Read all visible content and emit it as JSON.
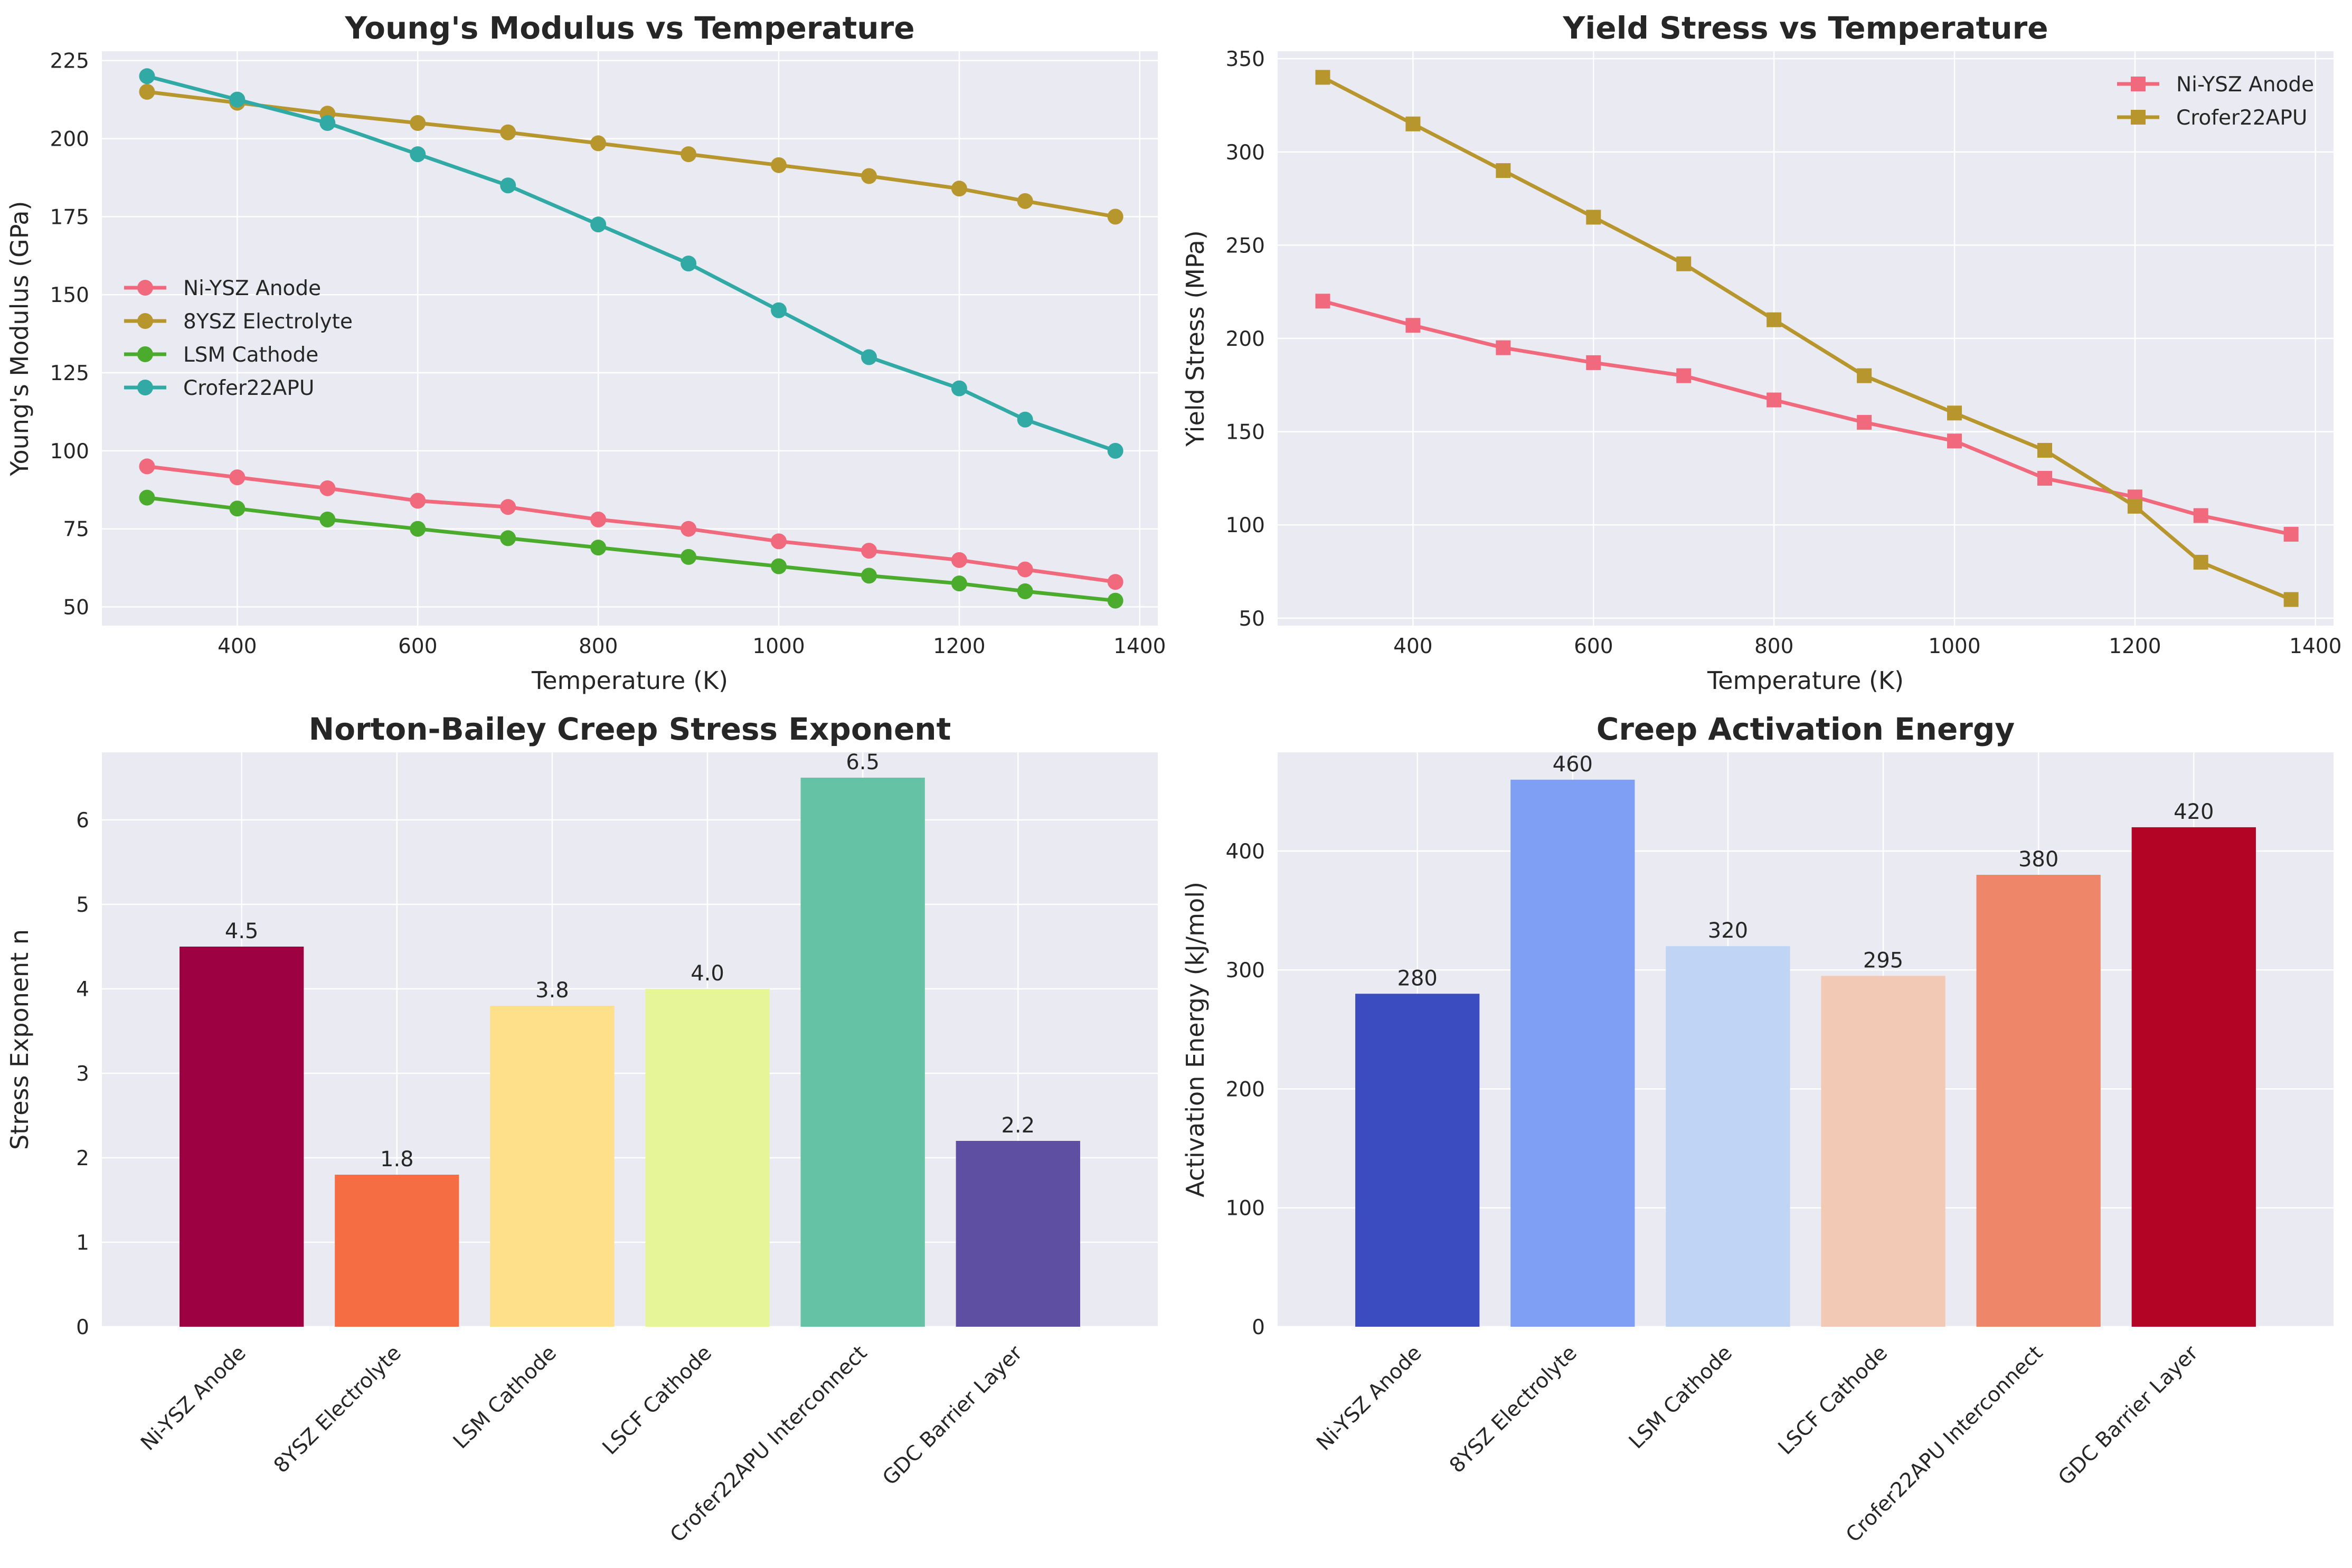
{
  "chart_data": [
    {
      "type": "line",
      "title": "Young's Modulus vs Temperature",
      "xlabel": "Temperature (K)",
      "ylabel": "Young's Modulus (GPa)",
      "xlim": [
        250,
        1420
      ],
      "ylim": [
        44,
        228
      ],
      "xticks": [
        400,
        600,
        800,
        1000,
        1200,
        1400
      ],
      "yticks": [
        50,
        75,
        100,
        125,
        150,
        175,
        200,
        225
      ],
      "grid": true,
      "legend": "center-left",
      "marker": "circle",
      "x": [
        300,
        400,
        500,
        600,
        700,
        800,
        900,
        1000,
        1100,
        1200,
        1273,
        1373
      ],
      "series": [
        {
          "name": "Ni-YSZ Anode",
          "color": "#f0697c",
          "values": [
            95,
            91.5,
            88,
            84,
            82,
            78,
            75,
            71,
            68,
            65,
            62,
            58
          ]
        },
        {
          "name": "8YSZ Electrolyte",
          "color": "#b8962e",
          "values": [
            215,
            211.5,
            208,
            205,
            202,
            198.5,
            195,
            191.5,
            188,
            184,
            180,
            175
          ]
        },
        {
          "name": "LSM Cathode",
          "color": "#4aab2c",
          "values": [
            85,
            81.5,
            78,
            75,
            72,
            69,
            66,
            63,
            60,
            57.5,
            55,
            52
          ]
        },
        {
          "name": "Crofer22APU",
          "color": "#31aaa6",
          "values": [
            220,
            212.5,
            205,
            195,
            185,
            172.5,
            160,
            145,
            130,
            120,
            110,
            100
          ]
        }
      ]
    },
    {
      "type": "line",
      "title": "Yield Stress vs Temperature",
      "xlabel": "Temperature (K)",
      "ylabel": "Yield Stress (MPa)",
      "xlim": [
        250,
        1420
      ],
      "ylim": [
        46,
        354
      ],
      "xticks": [
        400,
        600,
        800,
        1000,
        1200,
        1400
      ],
      "yticks": [
        50,
        100,
        150,
        200,
        250,
        300,
        350
      ],
      "grid": true,
      "legend": "top-right",
      "marker": "square",
      "x": [
        300,
        400,
        500,
        600,
        700,
        800,
        900,
        1000,
        1100,
        1200,
        1273,
        1373
      ],
      "series": [
        {
          "name": "Ni-YSZ Anode",
          "color": "#f0697c",
          "values": [
            220,
            207,
            195,
            187,
            180,
            167,
            155,
            145,
            125,
            115,
            105,
            95
          ]
        },
        {
          "name": "Crofer22APU",
          "color": "#b8962e",
          "values": [
            340,
            315,
            290,
            265,
            240,
            210,
            180,
            160,
            140,
            110,
            80,
            60
          ]
        }
      ]
    },
    {
      "type": "bar",
      "title": "Norton-Bailey Creep Stress Exponent",
      "xlabel": "",
      "ylabel": "Stress Exponent n",
      "ylim": [
        0,
        6.8
      ],
      "yticks": [
        0,
        1,
        2,
        3,
        4,
        5,
        6
      ],
      "grid": true,
      "categories": [
        "Ni-YSZ Anode",
        "8YSZ Electrolyte",
        "LSM Cathode",
        "LSCF Cathode",
        "Crofer22APU Interconnect",
        "GDC Barrier Layer"
      ],
      "values": [
        4.5,
        1.8,
        3.8,
        4.0,
        6.5,
        2.2
      ],
      "labels": [
        "4.5",
        "1.8",
        "3.8",
        "4.0",
        "6.5",
        "2.2"
      ],
      "colors": [
        "#9e0142",
        "#f46d43",
        "#fee08b",
        "#e6f598",
        "#66c2a5",
        "#5e4fa2"
      ]
    },
    {
      "type": "bar",
      "title": "Creep Activation Energy",
      "xlabel": "",
      "ylabel": "Activation Energy (kJ/mol)",
      "ylim": [
        0,
        483
      ],
      "yticks": [
        0,
        100,
        200,
        300,
        400
      ],
      "grid": true,
      "categories": [
        "Ni-YSZ Anode",
        "8YSZ Electrolyte",
        "LSM Cathode",
        "LSCF Cathode",
        "Crofer22APU Interconnect",
        "GDC Barrier Layer"
      ],
      "values": [
        280,
        460,
        320,
        295,
        380,
        420
      ],
      "labels": [
        "280",
        "460",
        "320",
        "295",
        "380",
        "420"
      ],
      "colors": [
        "#3b4cc0",
        "#7f9ff4",
        "#c0d4f5",
        "#f2c9b4",
        "#ee8669",
        "#b40426"
      ]
    }
  ]
}
